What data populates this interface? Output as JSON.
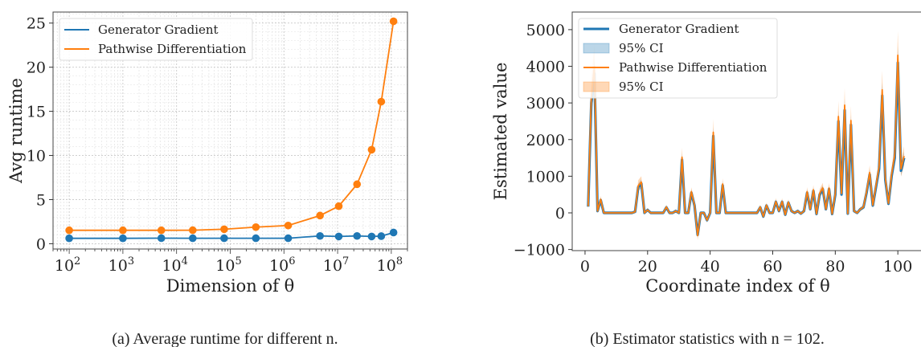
{
  "chart_data": [
    {
      "type": "line",
      "xlabel": "Dimension of θ",
      "ylabel": "Avg runtime",
      "xscale": "log",
      "xlim": [
        50,
        200000000
      ],
      "ylim": [
        -0.6,
        26.25
      ],
      "xticks": [
        100,
        1000,
        10000,
        100000,
        1000000,
        10000000,
        100000000
      ],
      "xtick_labels": [
        [
          "10",
          "2"
        ],
        [
          "10",
          "3"
        ],
        [
          "10",
          "4"
        ],
        [
          "10",
          "5"
        ],
        [
          "10",
          "6"
        ],
        [
          "10",
          "7"
        ],
        [
          "10",
          "8"
        ]
      ],
      "yticks": [
        0,
        5,
        10,
        15,
        20,
        25
      ],
      "grid": true,
      "legend": "top-left",
      "x": [
        100,
        1000,
        5200,
        20000,
        77000,
        300000,
        1200000,
        4700000,
        10500000,
        23000000,
        43000000,
        65000000,
        110000000
      ],
      "series": [
        {
          "name": "Generator Gradient",
          "color": "#1f77b4",
          "values": [
            0.61,
            0.61,
            0.63,
            0.62,
            0.62,
            0.62,
            0.62,
            0.88,
            0.82,
            0.88,
            0.82,
            0.86,
            1.27
          ]
        },
        {
          "name": "Pathwise Differentiation",
          "color": "#ff7f0e",
          "values": [
            1.52,
            1.52,
            1.52,
            1.53,
            1.64,
            1.88,
            2.06,
            3.19,
            4.25,
            6.74,
            10.65,
            16.1,
            25.2
          ]
        }
      ],
      "caption": "(a) Average runtime for different n."
    },
    {
      "type": "line",
      "xlabel": "Coordinate index of θ",
      "ylabel": "Estimated value",
      "xlim": [
        -4.1,
        111
      ],
      "ylim": [
        -1030,
        5480
      ],
      "xticks": [
        0,
        20,
        40,
        60,
        80,
        100
      ],
      "yticks": [
        -1000,
        0,
        1000,
        2000,
        3000,
        4000,
        5000
      ],
      "ytick_labels": [
        "−1000",
        "0",
        "1000",
        "2000",
        "3000",
        "4000",
        "5000"
      ],
      "grid": false,
      "legend": "top-left",
      "legend_entries": [
        "Generator Gradient",
        "95% CI",
        "Pathwise Differentiation",
        "95% CI"
      ],
      "x_start": 1,
      "series": [
        {
          "name": "Generator Gradient",
          "color": "#1f77b4",
          "values": [
            170,
            3000,
            3800,
            50,
            350,
            0,
            0,
            0,
            0,
            0,
            0,
            0,
            0,
            0,
            0,
            30,
            700,
            800,
            0,
            80,
            0,
            0,
            0,
            0,
            0,
            150,
            0,
            0,
            50,
            0,
            1450,
            0,
            0,
            550,
            200,
            -600,
            0,
            0,
            -200,
            0,
            2100,
            0,
            0,
            750,
            0,
            0,
            0,
            0,
            0,
            0,
            0,
            0,
            0,
            0,
            0,
            150,
            -100,
            200,
            0,
            0,
            300,
            50,
            300,
            -50,
            280,
            50,
            0,
            50,
            -20,
            50,
            550,
            100,
            600,
            -30,
            500,
            650,
            100,
            650,
            -30,
            500,
            2500,
            500,
            2800,
            -20,
            2400,
            50,
            0,
            100,
            150,
            550,
            1050,
            200,
            700,
            1200,
            3200,
            900,
            250,
            1000,
            1500,
            4100,
            1150,
            1500
          ],
          "ci_halfwidth": [
            50,
            330,
            410,
            40,
            70,
            30,
            30,
            30,
            30,
            30,
            30,
            30,
            30,
            30,
            30,
            30,
            100,
            110,
            30,
            40,
            30,
            30,
            30,
            30,
            30,
            50,
            30,
            30,
            40,
            30,
            180,
            30,
            30,
            90,
            50,
            90,
            30,
            30,
            50,
            30,
            240,
            30,
            30,
            110,
            30,
            30,
            30,
            30,
            30,
            30,
            30,
            30,
            30,
            30,
            30,
            50,
            40,
            50,
            30,
            30,
            60,
            40,
            60,
            40,
            60,
            40,
            30,
            40,
            30,
            40,
            90,
            40,
            90,
            30,
            80,
            100,
            40,
            100,
            30,
            80,
            280,
            80,
            310,
            30,
            270,
            40,
            30,
            40,
            50,
            90,
            140,
            50,
            100,
            150,
            350,
            120,
            60,
            130,
            180,
            440,
            150,
            180
          ]
        },
        {
          "name": "Pathwise Differentiation",
          "color": "#ff7f0e",
          "values": [
            180,
            3150,
            4000,
            50,
            370,
            0,
            0,
            0,
            0,
            0,
            0,
            0,
            0,
            0,
            0,
            30,
            740,
            840,
            0,
            80,
            0,
            0,
            0,
            0,
            0,
            160,
            0,
            0,
            50,
            0,
            1520,
            0,
            0,
            580,
            210,
            -620,
            0,
            0,
            -200,
            0,
            2200,
            0,
            0,
            790,
            0,
            0,
            0,
            0,
            0,
            0,
            0,
            0,
            0,
            0,
            0,
            160,
            -100,
            210,
            0,
            0,
            310,
            50,
            310,
            -50,
            290,
            50,
            0,
            50,
            -20,
            50,
            580,
            100,
            630,
            -30,
            530,
            680,
            100,
            680,
            -30,
            530,
            2630,
            530,
            2940,
            -20,
            2520,
            50,
            0,
            100,
            160,
            580,
            1100,
            210,
            740,
            1260,
            3360,
            950,
            260,
            1050,
            1580,
            4300,
            1200,
            1550
          ],
          "ci_halfwidth": [
            70,
            490,
            610,
            50,
            90,
            40,
            40,
            40,
            40,
            40,
            40,
            40,
            40,
            40,
            40,
            40,
            150,
            160,
            40,
            50,
            40,
            40,
            40,
            40,
            40,
            60,
            40,
            40,
            50,
            40,
            260,
            40,
            40,
            120,
            70,
            130,
            40,
            40,
            70,
            40,
            360,
            40,
            40,
            150,
            40,
            40,
            40,
            40,
            40,
            40,
            40,
            40,
            40,
            40,
            40,
            60,
            60,
            70,
            40,
            40,
            90,
            50,
            90,
            50,
            80,
            50,
            40,
            50,
            40,
            50,
            120,
            60,
            130,
            40,
            120,
            140,
            60,
            140,
            40,
            120,
            420,
            120,
            470,
            40,
            400,
            50,
            40,
            60,
            60,
            120,
            200,
            70,
            150,
            220,
            520,
            180,
            80,
            190,
            270,
            660,
            210,
            270
          ]
        }
      ],
      "caption": "(b) Estimator statistics with n = 102."
    }
  ]
}
